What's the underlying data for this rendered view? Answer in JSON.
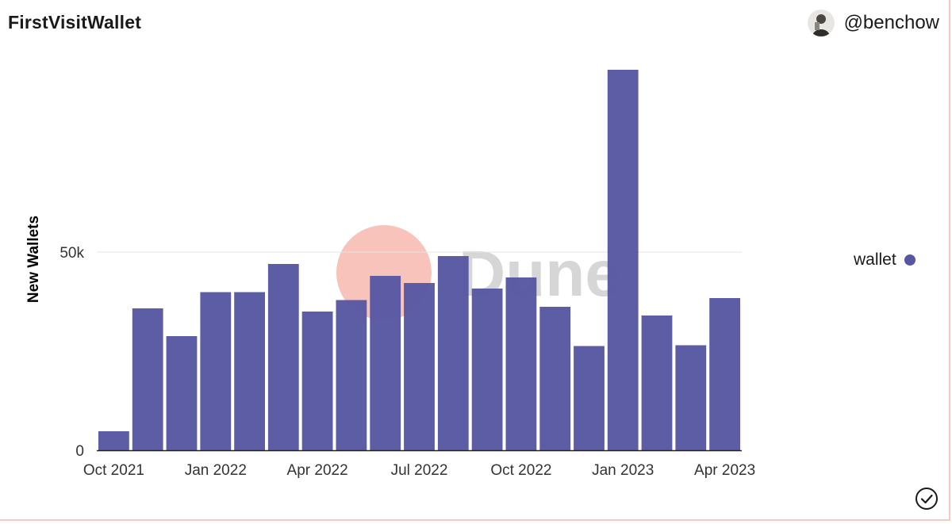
{
  "header": {
    "title": "FirstVisitWallet",
    "author": "@benchow"
  },
  "watermark": {
    "text": "Dune"
  },
  "colors": {
    "bar": "#5656a2",
    "watermark_circle": "#f7c3bb",
    "watermark_text": "#d6d6d6",
    "frame": "#f3c9c2"
  },
  "icons": {
    "avatar": "user-avatar",
    "legend": "circle-dot-icon",
    "check": "check-circle-icon"
  },
  "chart_data": {
    "type": "bar",
    "ylabel": "New Wallets",
    "xlabel": "",
    "ylim": [
      0,
      100000
    ],
    "yticks": [
      {
        "value": 0,
        "label": "0"
      },
      {
        "value": 50000,
        "label": "50k"
      }
    ],
    "grid": true,
    "legend_position": "right",
    "categories": [
      "2021-10",
      "2021-11",
      "2021-12",
      "2022-01",
      "2022-02",
      "2022-03",
      "2022-04",
      "2022-05",
      "2022-06",
      "2022-07",
      "2022-08",
      "2022-09",
      "2022-10",
      "2022-11",
      "2022-12",
      "2023-01",
      "2023-02",
      "2023-03",
      "2023-04"
    ],
    "xtick_labels": [
      {
        "category": "2021-10",
        "label": "Oct 2021"
      },
      {
        "category": "2022-01",
        "label": "Jan 2022"
      },
      {
        "category": "2022-04",
        "label": "Apr 2022"
      },
      {
        "category": "2022-07",
        "label": "Jul 2022"
      },
      {
        "category": "2022-10",
        "label": "Oct 2022"
      },
      {
        "category": "2023-01",
        "label": "Jan 2023"
      },
      {
        "category": "2023-04",
        "label": "Apr 2023"
      }
    ],
    "series": [
      {
        "name": "wallet",
        "values": [
          4800,
          35800,
          28800,
          39900,
          39900,
          47000,
          35000,
          37900,
          44000,
          42200,
          49000,
          40800,
          43600,
          36200,
          26300,
          96000,
          34000,
          26500,
          38400
        ]
      }
    ]
  }
}
